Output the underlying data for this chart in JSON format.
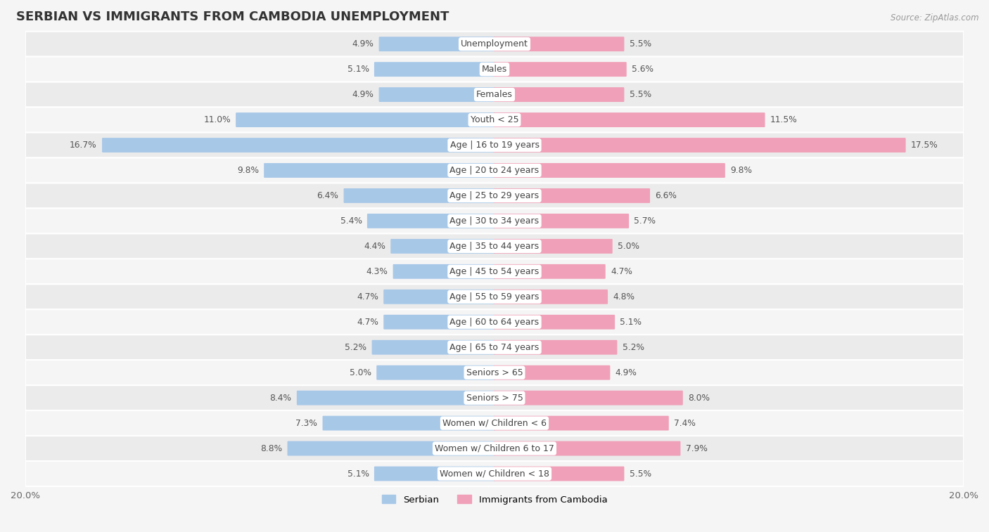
{
  "title": "SERBIAN VS IMMIGRANTS FROM CAMBODIA UNEMPLOYMENT",
  "source": "Source: ZipAtlas.com",
  "categories": [
    "Unemployment",
    "Males",
    "Females",
    "Youth < 25",
    "Age | 16 to 19 years",
    "Age | 20 to 24 years",
    "Age | 25 to 29 years",
    "Age | 30 to 34 years",
    "Age | 35 to 44 years",
    "Age | 45 to 54 years",
    "Age | 55 to 59 years",
    "Age | 60 to 64 years",
    "Age | 65 to 74 years",
    "Seniors > 65",
    "Seniors > 75",
    "Women w/ Children < 6",
    "Women w/ Children 6 to 17",
    "Women w/ Children < 18"
  ],
  "serbian": [
    4.9,
    5.1,
    4.9,
    11.0,
    16.7,
    9.8,
    6.4,
    5.4,
    4.4,
    4.3,
    4.7,
    4.7,
    5.2,
    5.0,
    8.4,
    7.3,
    8.8,
    5.1
  ],
  "cambodia": [
    5.5,
    5.6,
    5.5,
    11.5,
    17.5,
    9.8,
    6.6,
    5.7,
    5.0,
    4.7,
    4.8,
    5.1,
    5.2,
    4.9,
    8.0,
    7.4,
    7.9,
    5.5
  ],
  "serbian_color": "#a8c8e8",
  "cambodia_color": "#f0a0b8",
  "bar_height": 0.52,
  "xlim": 20.0,
  "row_colors": [
    "#ebebeb",
    "#f5f5f5"
  ],
  "title_fontsize": 13,
  "label_fontsize": 9.0,
  "value_fontsize": 8.8,
  "tick_fontsize": 9.5
}
